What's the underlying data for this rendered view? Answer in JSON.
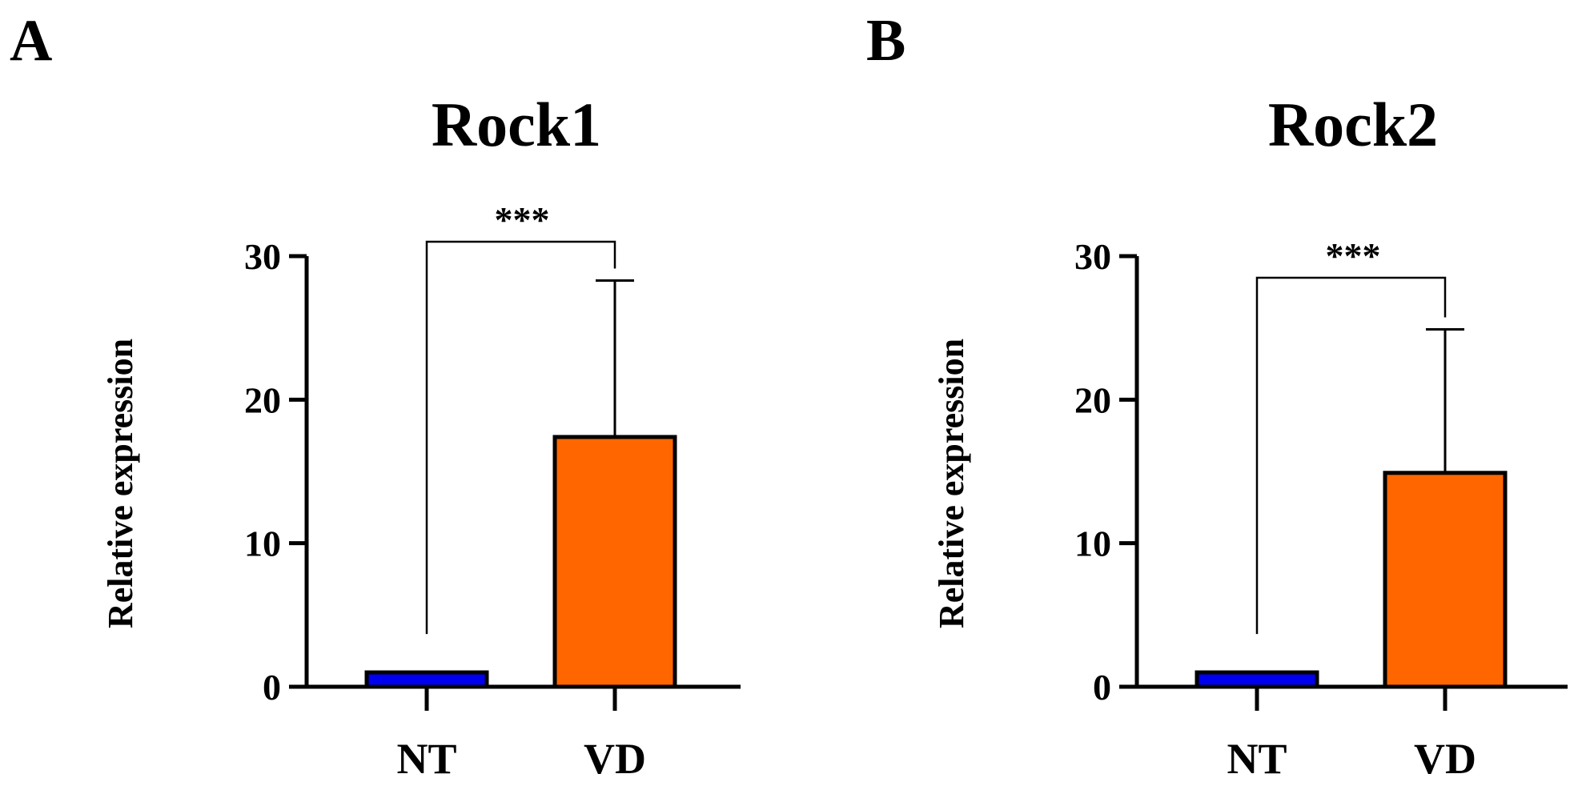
{
  "chart_data": [
    {
      "type": "bar",
      "panel": "A",
      "title": "Rock1",
      "xlabel": "",
      "ylabel": "Relative expression",
      "ylim": [
        0,
        30
      ],
      "yticks": [
        "0",
        "10",
        "20",
        "30"
      ],
      "categories": [
        "NT",
        "VD"
      ],
      "values": [
        1.0,
        17.4
      ],
      "error_upper": [
        0.0,
        10.9
      ],
      "significance": {
        "label": "***",
        "between": [
          "NT",
          "VD"
        ]
      },
      "colors": [
        "#0000ee",
        "#ff6600"
      ]
    },
    {
      "type": "bar",
      "panel": "B",
      "title": "Rock2",
      "xlabel": "",
      "ylabel": "Relative expression",
      "ylim": [
        0,
        30
      ],
      "yticks": [
        "0",
        "10",
        "20",
        "30"
      ],
      "categories": [
        "NT",
        "VD"
      ],
      "values": [
        1.0,
        14.9
      ],
      "error_upper": [
        0.0,
        10.0
      ],
      "significance": {
        "label": "***",
        "between": [
          "NT",
          "VD"
        ]
      },
      "colors": [
        "#0000ee",
        "#ff6600"
      ]
    }
  ]
}
